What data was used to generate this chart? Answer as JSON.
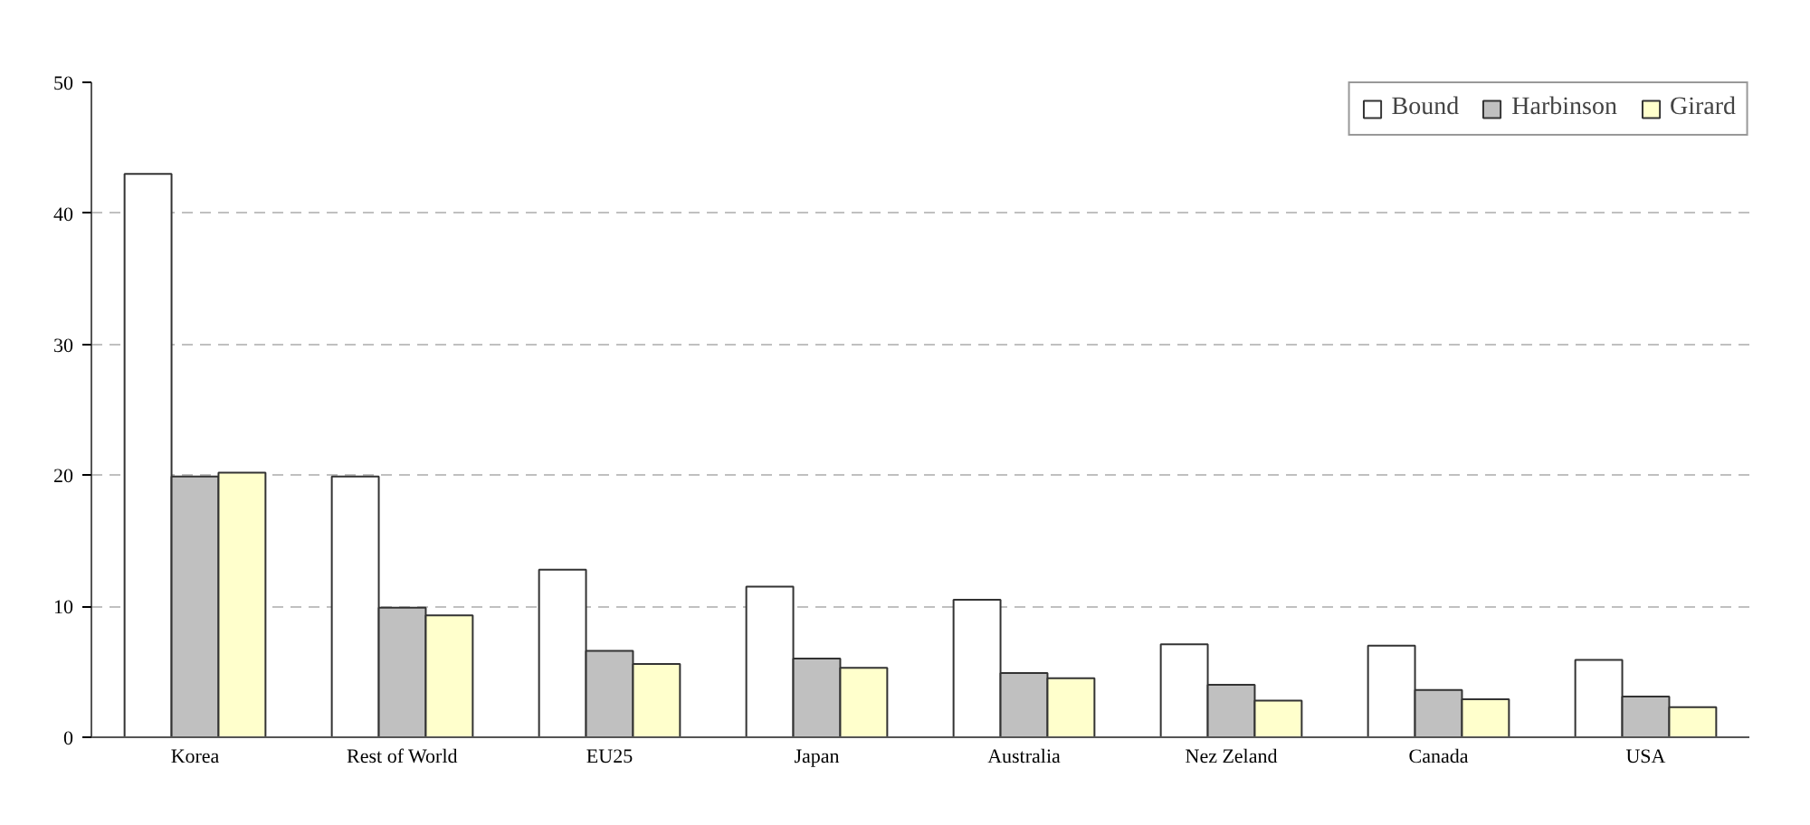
{
  "chart_data": {
    "type": "bar",
    "categories": [
      "Korea",
      "Rest of World",
      "EU25",
      "Japan",
      "Australia",
      "Nez Zeland",
      "Canada",
      "USA"
    ],
    "series": [
      {
        "name": "Bound",
        "color": "#ffffff",
        "values": [
          43.0,
          19.9,
          12.8,
          11.5,
          10.5,
          7.1,
          7.0,
          5.9
        ]
      },
      {
        "name": "Harbinson",
        "color": "#c0c0c0",
        "values": [
          19.9,
          9.9,
          6.6,
          6.0,
          4.9,
          4.0,
          3.6,
          3.1
        ]
      },
      {
        "name": "Girard",
        "color": "#ffffcc",
        "values": [
          20.2,
          9.3,
          5.6,
          5.3,
          4.5,
          2.8,
          2.9,
          2.3
        ]
      }
    ],
    "ylim": [
      0,
      50
    ],
    "yticks": [
      0,
      10,
      20,
      30,
      40,
      50
    ],
    "grid": "y",
    "legend": "top right"
  }
}
